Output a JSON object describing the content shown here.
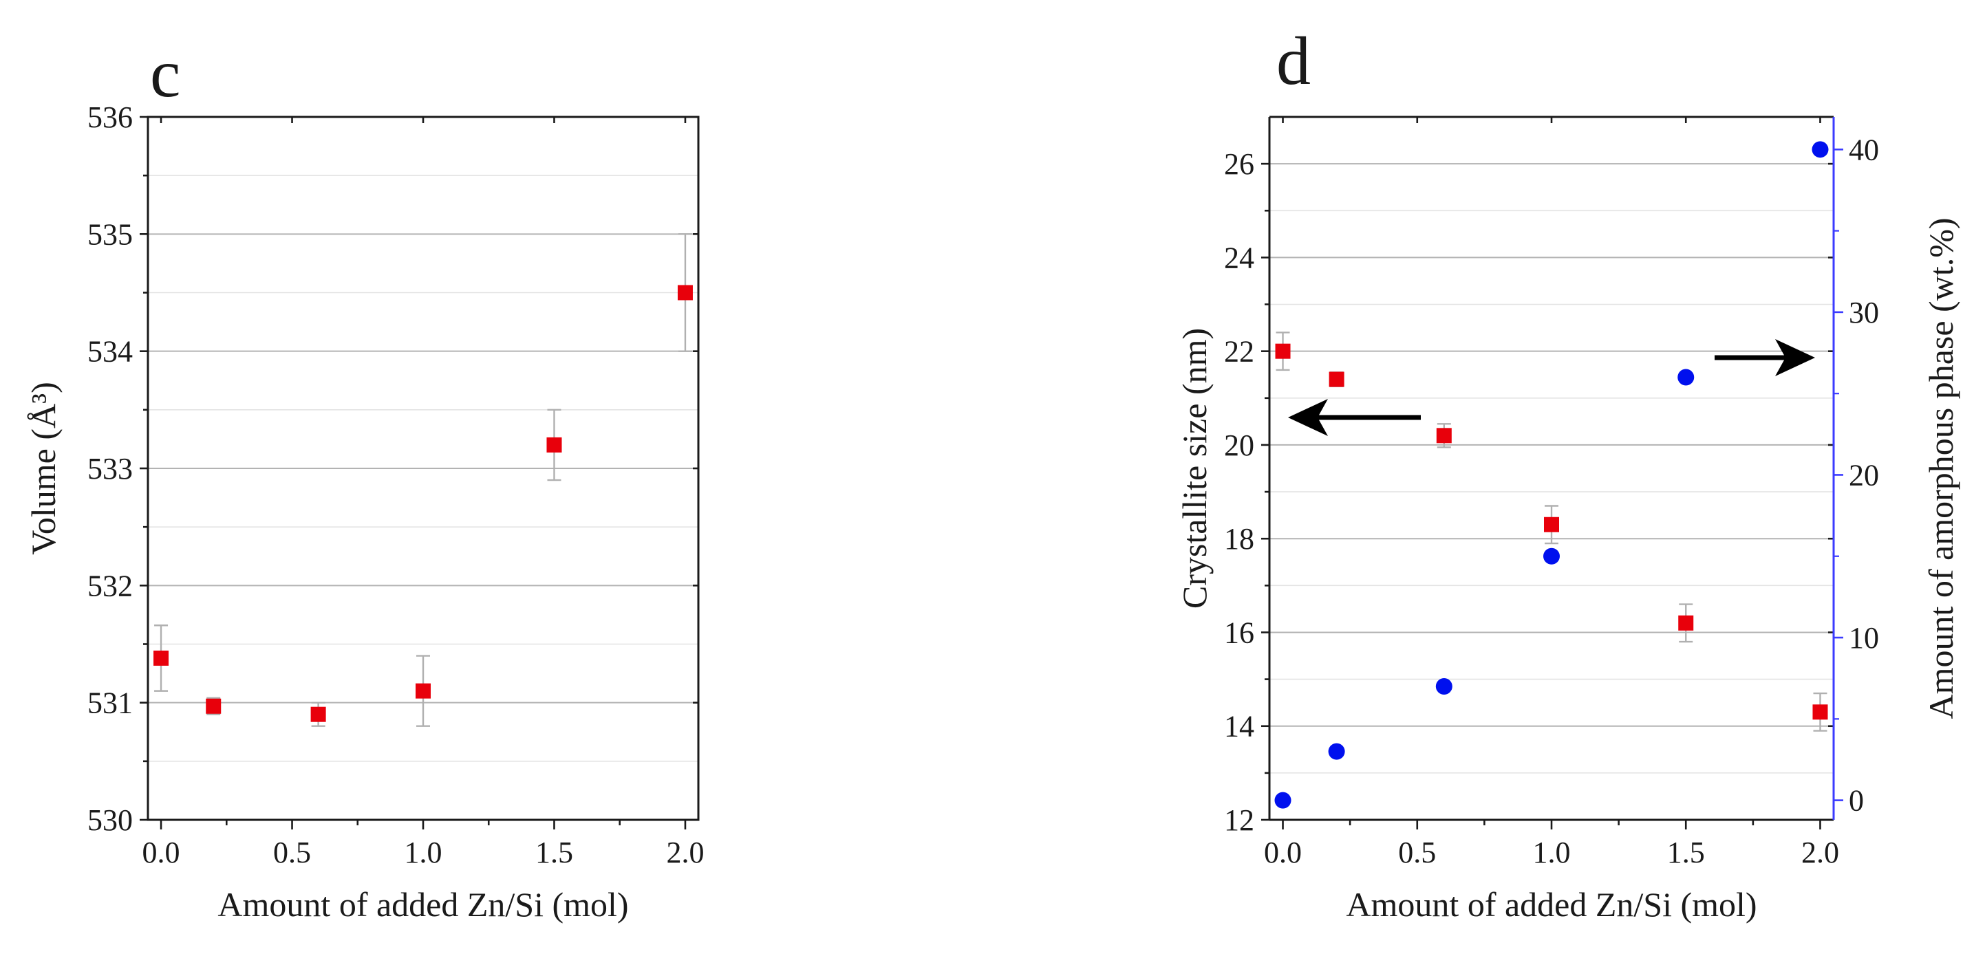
{
  "chart_data": [
    {
      "panel": "c",
      "type": "scatter",
      "xlabel": "Amount of added Zn/Si (mol)",
      "ylabel": "Volume (Å³)",
      "xlim": [
        -0.05,
        2.05
      ],
      "ylim": [
        530,
        536
      ],
      "x_ticks": [
        0.0,
        0.5,
        1.0,
        1.5,
        2.0
      ],
      "x_tick_labels": [
        "0.0",
        "0.5",
        "1.0",
        "1.5",
        "2.0"
      ],
      "y_ticks": [
        530,
        531,
        532,
        533,
        534,
        535,
        536
      ],
      "y_tick_labels": [
        "530",
        "531",
        "532",
        "533",
        "534",
        "535",
        "536"
      ],
      "grid": true,
      "series": [
        {
          "name": "Volume",
          "marker": "square",
          "color": "#e8000b",
          "x": [
            0.0,
            0.2,
            0.6,
            1.0,
            1.5,
            2.0
          ],
          "y": [
            531.38,
            530.97,
            530.9,
            531.1,
            533.2,
            534.5
          ],
          "err": [
            0.28,
            0.07,
            0.1,
            0.3,
            0.3,
            0.5
          ]
        }
      ]
    },
    {
      "panel": "d",
      "type": "scatter",
      "xlabel": "Amount of added Zn/Si (mol)",
      "ylabel": "Crystallite size (nm)",
      "y2label": "Amount of amorphous phase (wt.%)",
      "xlim": [
        -0.05,
        2.05
      ],
      "ylim": [
        12,
        27
      ],
      "y2lim": [
        -1.2,
        42
      ],
      "x_ticks": [
        0.0,
        0.5,
        1.0,
        1.5,
        2.0
      ],
      "x_tick_labels": [
        "0.0",
        "0.5",
        "1.0",
        "1.5",
        "2.0"
      ],
      "y_ticks": [
        12,
        14,
        16,
        18,
        20,
        22,
        24,
        26
      ],
      "y_tick_labels": [
        "12",
        "14",
        "16",
        "18",
        "20",
        "22",
        "24",
        "26"
      ],
      "y2_ticks": [
        0,
        10,
        20,
        30,
        40
      ],
      "y2_tick_labels": [
        "0",
        "10",
        "20",
        "30",
        "40"
      ],
      "grid": true,
      "series": [
        {
          "name": "Crystallite size",
          "axis": "left",
          "marker": "square",
          "color": "#e8000b",
          "x": [
            0.0,
            0.2,
            0.6,
            1.0,
            1.5,
            2.0
          ],
          "y": [
            22.0,
            21.4,
            20.2,
            18.3,
            16.2,
            14.3
          ],
          "err": [
            0.4,
            0.15,
            0.25,
            0.4,
            0.4,
            0.4
          ]
        },
        {
          "name": "Amount of amorphous phase",
          "axis": "right",
          "marker": "circle",
          "color": "#0010ee",
          "x": [
            0.0,
            0.2,
            0.6,
            1.0,
            1.5,
            2.0
          ],
          "y": [
            0.0,
            3.0,
            7.0,
            15.0,
            26.0,
            40.0
          ]
        }
      ],
      "annotations": [
        {
          "type": "arrow",
          "direction": "left",
          "points_to": "left axis"
        },
        {
          "type": "arrow",
          "direction": "right",
          "points_to": "right axis"
        }
      ]
    }
  ],
  "colors": {
    "red_series": "#e8000b",
    "blue_series": "#0010ee",
    "right_axis": "#3b3bff"
  }
}
